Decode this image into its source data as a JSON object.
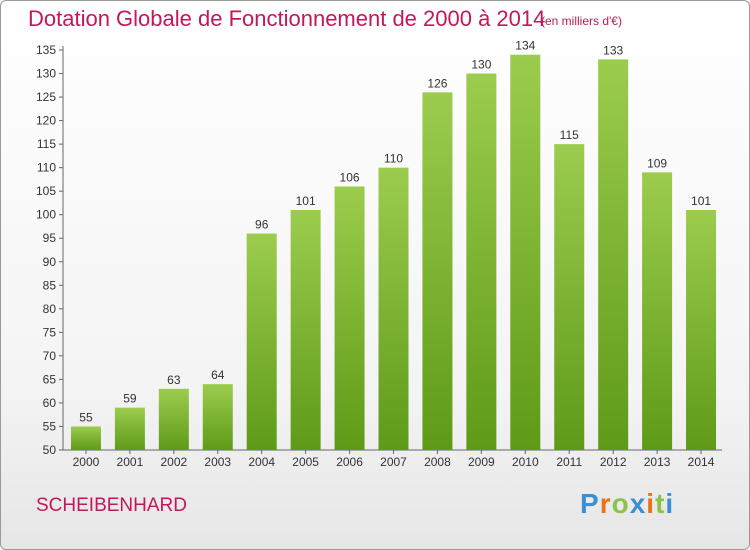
{
  "header": {
    "title": "Dotation Globale de Fonctionnement de 2000 à 2014",
    "subtitle": "(en milliers d'€)"
  },
  "footer": {
    "commune": "SCHEIBENHARD",
    "logo": "Proxiti",
    "logo_colors": [
      "#3b8fd4",
      "#e8731a",
      "#8bc34a",
      "#3b8fd4",
      "#e8731a",
      "#8bc34a",
      "#3b8fd4"
    ]
  },
  "chart_data": {
    "type": "bar",
    "title": "Dotation Globale de Fonctionnement de 2000 à 2014",
    "subtitle": "(en milliers d'€)",
    "categories": [
      "2000",
      "2001",
      "2002",
      "2003",
      "2004",
      "2005",
      "2006",
      "2007",
      "2008",
      "2009",
      "2010",
      "2011",
      "2012",
      "2013",
      "2014"
    ],
    "values": [
      55,
      59,
      63,
      64,
      96,
      101,
      106,
      110,
      126,
      130,
      134,
      115,
      133,
      109,
      101
    ],
    "ylim": [
      50,
      135
    ],
    "yticks": [
      50,
      55,
      60,
      65,
      70,
      75,
      80,
      85,
      90,
      95,
      100,
      105,
      110,
      115,
      120,
      125,
      130,
      135
    ],
    "grid": false,
    "bar_color_top": "#9ccc4e",
    "bar_color_bottom": "#5e9a18"
  }
}
